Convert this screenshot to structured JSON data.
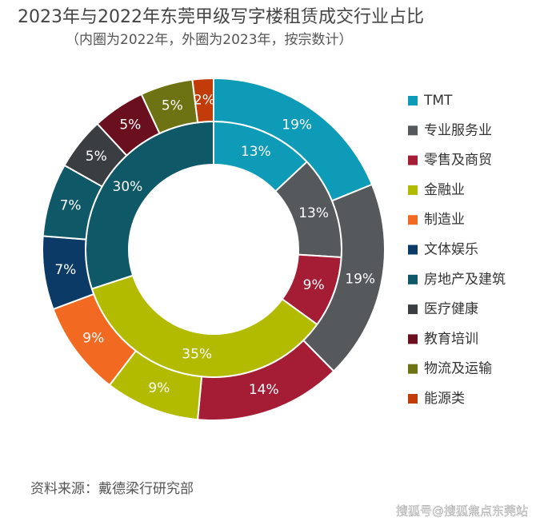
{
  "chart_data": {
    "type": "nested-donut",
    "title": "2023年与2022年东莞甲级写字楼租赁成交行业占比",
    "subtitle": "（内圈为2022年，外圈为2023年，按宗数计）",
    "source": "资料来源：戴德梁行研究部",
    "watermark": "搜狐号@搜狐焦点东莞站",
    "categories": [
      "TMT",
      "专业服务业",
      "零售及商贸",
      "金融业",
      "制造业",
      "文体娱乐",
      "房地产及建筑",
      "医疗健康",
      "教育培训",
      "物流及运输",
      "能源类"
    ],
    "colors": [
      "#0e9bb8",
      "#55595c",
      "#a51d35",
      "#b3bb00",
      "#f26a21",
      "#0c3a66",
      "#0e5868",
      "#3b3e41",
      "#6a0f1e",
      "#6d7313",
      "#c23c0a"
    ],
    "series": [
      {
        "name": "2022",
        "ring": "inner",
        "values": [
          13,
          13,
          9,
          35,
          null,
          null,
          30,
          null,
          null,
          null,
          null
        ],
        "value_labels": [
          "13%",
          "13%",
          "9%",
          "35%",
          null,
          null,
          "30%",
          null,
          null,
          null,
          null
        ]
      },
      {
        "name": "2023",
        "ring": "outer",
        "values": [
          19,
          19,
          14,
          9,
          9,
          7,
          7,
          5,
          5,
          5,
          2
        ],
        "value_labels": [
          "19%",
          "19%",
          "14%",
          "9%",
          "9%",
          "7%",
          "7%",
          "5%",
          "5%",
          "5%",
          "2%"
        ]
      }
    ]
  }
}
